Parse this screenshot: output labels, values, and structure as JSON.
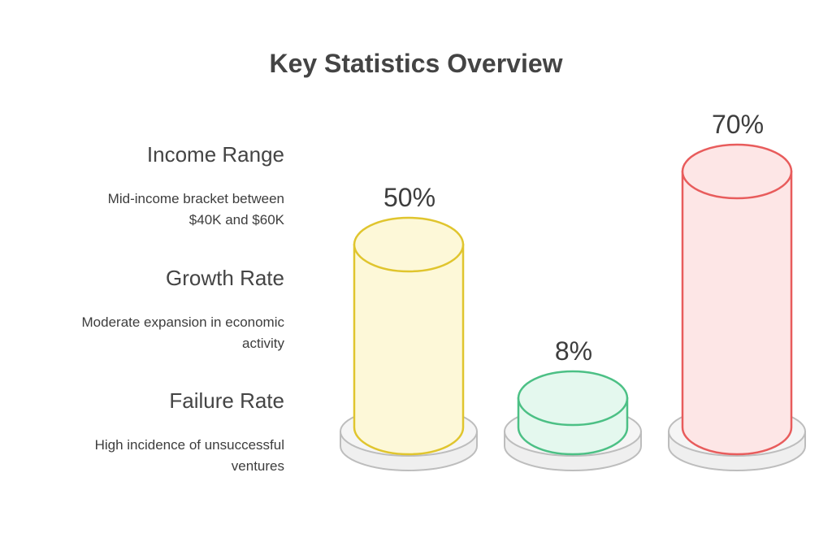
{
  "title": "Key Statistics Overview",
  "stats": [
    {
      "title": "Income Range",
      "description_line1": "Mid-income bracket between",
      "description_line2": "$40K and $60K"
    },
    {
      "title": "Growth Rate",
      "description_line1": "Moderate expansion in economic",
      "description_line2": "activity"
    },
    {
      "title": "Failure Rate",
      "description_line1": "High incidence of unsuccessful",
      "description_line2": "ventures"
    }
  ],
  "chart_data": {
    "type": "bar",
    "title": "Key Statistics Overview",
    "categories": [
      "Income Range",
      "Growth Rate",
      "Failure Rate"
    ],
    "values": [
      50,
      8,
      70
    ],
    "value_labels": [
      "50%",
      "8%",
      "70%"
    ],
    "unit": "%",
    "colors": [
      {
        "fill": "#fdf8d8",
        "stroke": "#e0c52e"
      },
      {
        "fill": "#e4f8ee",
        "stroke": "#4cc085"
      },
      {
        "fill": "#fde6e6",
        "stroke": "#e85c5c"
      }
    ],
    "base_color": {
      "fill": "#efefef",
      "stroke": "#bdbdbd"
    }
  }
}
